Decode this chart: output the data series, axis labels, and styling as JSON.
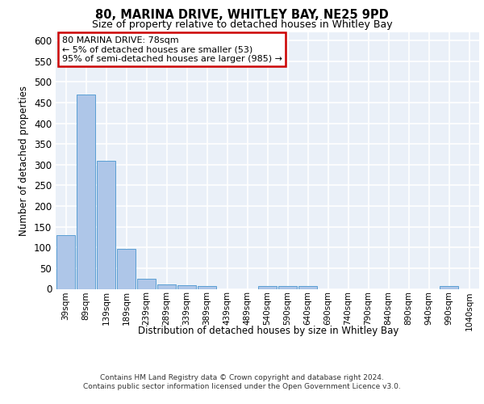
{
  "title": "80, MARINA DRIVE, WHITLEY BAY, NE25 9PD",
  "subtitle": "Size of property relative to detached houses in Whitley Bay",
  "xlabel": "Distribution of detached houses by size in Whitley Bay",
  "ylabel": "Number of detached properties",
  "categories": [
    "39sqm",
    "89sqm",
    "139sqm",
    "189sqm",
    "239sqm",
    "289sqm",
    "339sqm",
    "389sqm",
    "439sqm",
    "489sqm",
    "540sqm",
    "590sqm",
    "640sqm",
    "690sqm",
    "740sqm",
    "790sqm",
    "840sqm",
    "890sqm",
    "940sqm",
    "990sqm",
    "1040sqm"
  ],
  "values": [
    130,
    470,
    310,
    97,
    25,
    10,
    8,
    7,
    0,
    0,
    7,
    7,
    7,
    0,
    0,
    0,
    0,
    0,
    0,
    7,
    0
  ],
  "bar_color": "#aec6e8",
  "bar_edge_color": "#5a9fd4",
  "annotation_text": "80 MARINA DRIVE: 78sqm\n← 5% of detached houses are smaller (53)\n95% of semi-detached houses are larger (985) →",
  "annotation_box_color": "#ffffff",
  "annotation_box_edge_color": "#cc0000",
  "ylim": [
    0,
    620
  ],
  "yticks": [
    0,
    50,
    100,
    150,
    200,
    250,
    300,
    350,
    400,
    450,
    500,
    550,
    600
  ],
  "background_color": "#eaf0f8",
  "grid_color": "#ffffff",
  "footer_line1": "Contains HM Land Registry data © Crown copyright and database right 2024.",
  "footer_line2": "Contains public sector information licensed under the Open Government Licence v3.0."
}
